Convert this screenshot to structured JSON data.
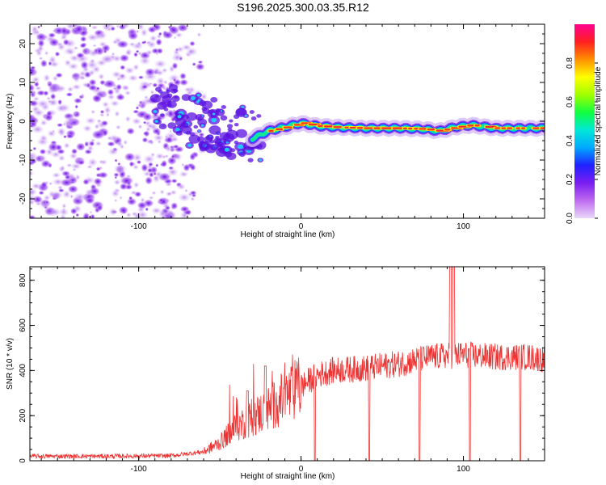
{
  "title": "S196.2025.300.03.35.R12",
  "chart_data": [
    {
      "type": "heatmap",
      "name": "spectrogram",
      "xlabel": "Height of straight line (km)",
      "ylabel": "Frequency (Hz)",
      "xlim": [
        -167,
        150
      ],
      "ylim": [
        -25,
        25
      ],
      "xticks": [
        -100,
        0,
        100
      ],
      "yticks": [
        -20,
        -10,
        0,
        10,
        20
      ],
      "colorbar": {
        "label": "Normalized spectral amplitude",
        "ticks": [
          "0.0",
          "0.2",
          "0.4",
          "0.6",
          "0.8"
        ],
        "tick_values": [
          0.0,
          0.2,
          0.4,
          0.6,
          0.8
        ],
        "range": [
          0.0,
          1.0
        ],
        "colors": [
          "#e8d8f8",
          "#c06cf0",
          "#7a1ef0",
          "#2020ff",
          "#00a8ff",
          "#00e8d8",
          "#10ff40",
          "#a0ff00",
          "#ffff00",
          "#ff9000",
          "#ff2020",
          "#ff0090"
        ]
      },
      "features": {
        "noise_region_km": [
          -167,
          -65
        ],
        "transition_region_km": [
          -90,
          -25
        ],
        "tone_start_km": -30,
        "tone_track_hz": [
          [
            -30,
            -4.5
          ],
          [
            -25,
            -3.5
          ],
          [
            -20,
            -2.5
          ],
          [
            -10,
            -1.5
          ],
          [
            0,
            -0.5
          ],
          [
            10,
            -1.2
          ],
          [
            20,
            -1.5
          ],
          [
            40,
            -1.8
          ],
          [
            60,
            -1.8
          ],
          [
            75,
            -2.0
          ],
          [
            85,
            -2.5
          ],
          [
            95,
            -1.5
          ],
          [
            105,
            -1.0
          ],
          [
            120,
            -1.8
          ],
          [
            140,
            -1.8
          ],
          [
            150,
            -1.8
          ]
        ]
      }
    },
    {
      "type": "line",
      "name": "snr",
      "xlabel": "Height of straight line (km)",
      "ylabel": "SNR (10 * v/v)",
      "xlim": [
        -167,
        150
      ],
      "ylim": [
        0,
        860
      ],
      "xticks": [
        -100,
        0,
        100
      ],
      "yticks": [
        0,
        200,
        400,
        600,
        800
      ],
      "color": "#ee3333",
      "envelope": [
        [
          -167,
          20
        ],
        [
          -120,
          20
        ],
        [
          -80,
          22
        ],
        [
          -60,
          40
        ],
        [
          -50,
          80
        ],
        [
          -40,
          150
        ],
        [
          -30,
          190
        ],
        [
          -20,
          230
        ],
        [
          -10,
          280
        ],
        [
          0,
          330
        ],
        [
          10,
          380
        ],
        [
          20,
          400
        ],
        [
          40,
          410
        ],
        [
          60,
          430
        ],
        [
          80,
          460
        ],
        [
          100,
          470
        ],
        [
          120,
          460
        ],
        [
          140,
          460
        ],
        [
          150,
          450
        ]
      ],
      "spikes": [
        [
          -33,
          310
        ],
        [
          -22,
          420
        ],
        [
          92,
          860
        ],
        [
          94,
          860
        ]
      ],
      "dropouts": [
        8.5,
        42,
        73,
        104,
        135
      ]
    }
  ]
}
